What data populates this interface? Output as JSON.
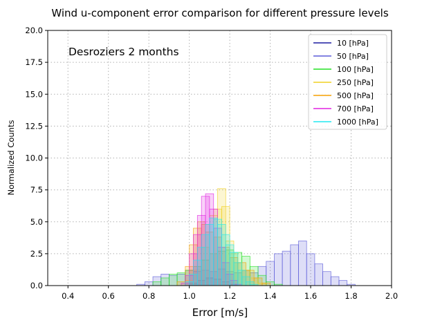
{
  "chart_data": {
    "type": "histogram",
    "title": "Wind u-component error comparison for different pressure levels",
    "xlabel": "Error [m/s]",
    "ylabel": "Normalized Counts",
    "annotation": "Desroziers 2 months",
    "xlim": [
      0.3,
      2.0
    ],
    "ylim": [
      0,
      20
    ],
    "xticks": [
      "0.4",
      "0.6",
      "0.8",
      "1.0",
      "1.2",
      "1.4",
      "1.6",
      "1.8",
      "2.0"
    ],
    "yticks": [
      "0.0",
      "2.5",
      "5.0",
      "7.5",
      "10.0",
      "12.5",
      "15.0",
      "17.5",
      "20.0"
    ],
    "grid": true,
    "legend_position": "top-right",
    "series": [
      {
        "name": "10 [hPa]",
        "color": "#1a1aa0",
        "edges": [
          1.1,
          1.22
        ],
        "bins": [
          [
            1.02,
            0.2
          ],
          [
            1.06,
            0.4
          ],
          [
            1.1,
            0.6
          ],
          [
            1.14,
            0.5
          ],
          [
            1.18,
            0.3
          ],
          [
            1.22,
            0.1
          ]
        ]
      },
      {
        "name": "50 [hPa]",
        "color": "#5a5ad8",
        "bins": [
          [
            0.76,
            0.1
          ],
          [
            0.8,
            0.3
          ],
          [
            0.84,
            0.7
          ],
          [
            0.88,
            0.9
          ],
          [
            0.92,
            0.8
          ],
          [
            0.96,
            0.9
          ],
          [
            1.0,
            1.2
          ],
          [
            1.04,
            1.1
          ],
          [
            1.08,
            1.2
          ],
          [
            1.12,
            1.1
          ],
          [
            1.16,
            1.3
          ],
          [
            1.2,
            1.1
          ],
          [
            1.24,
            1.0
          ],
          [
            1.28,
            1.2
          ],
          [
            1.32,
            1.0
          ],
          [
            1.36,
            1.5
          ],
          [
            1.4,
            1.9
          ],
          [
            1.44,
            2.5
          ],
          [
            1.48,
            2.7
          ],
          [
            1.52,
            3.2
          ],
          [
            1.56,
            3.5
          ],
          [
            1.6,
            2.5
          ],
          [
            1.64,
            1.7
          ],
          [
            1.68,
            1.1
          ],
          [
            1.72,
            0.7
          ],
          [
            1.76,
            0.4
          ],
          [
            1.8,
            0.1
          ]
        ]
      },
      {
        "name": "100 [hPa]",
        "color": "#22e022",
        "bins": [
          [
            0.84,
            0.3
          ],
          [
            0.88,
            0.6
          ],
          [
            0.92,
            0.9
          ],
          [
            0.96,
            1.0
          ],
          [
            1.0,
            1.2
          ],
          [
            1.04,
            1.5
          ],
          [
            1.08,
            2.0
          ],
          [
            1.12,
            2.5
          ],
          [
            1.16,
            2.7
          ],
          [
            1.2,
            2.8
          ],
          [
            1.24,
            2.6
          ],
          [
            1.28,
            2.3
          ],
          [
            1.32,
            1.5
          ],
          [
            1.36,
            0.8
          ],
          [
            1.4,
            0.3
          ],
          [
            1.44,
            0.1
          ]
        ]
      },
      {
        "name": "250 [hPa]",
        "color": "#f0d020",
        "bins": [
          [
            1.0,
            0.4
          ],
          [
            1.04,
            1.2
          ],
          [
            1.08,
            3.0
          ],
          [
            1.12,
            5.5
          ],
          [
            1.14,
            6.0
          ],
          [
            1.16,
            7.6
          ],
          [
            1.18,
            6.2
          ],
          [
            1.2,
            3.5
          ],
          [
            1.22,
            2.5
          ],
          [
            1.24,
            1.8
          ],
          [
            1.28,
            1.2
          ],
          [
            1.32,
            0.6
          ],
          [
            1.36,
            0.2
          ]
        ]
      },
      {
        "name": "500 [hPa]",
        "color": "#f5a000",
        "bins": [
          [
            0.96,
            0.3
          ],
          [
            1.0,
            1.5
          ],
          [
            1.02,
            3.2
          ],
          [
            1.04,
            4.5
          ],
          [
            1.06,
            5.0
          ],
          [
            1.08,
            4.8
          ],
          [
            1.1,
            4.2
          ],
          [
            1.14,
            3.8
          ],
          [
            1.18,
            3.0
          ],
          [
            1.22,
            2.2
          ],
          [
            1.26,
            1.8
          ],
          [
            1.3,
            1.2
          ],
          [
            1.34,
            0.6
          ],
          [
            1.38,
            0.2
          ]
        ]
      },
      {
        "name": "700 [hPa]",
        "color": "#e020e0",
        "bins": [
          [
            0.98,
            0.2
          ],
          [
            1.0,
            0.8
          ],
          [
            1.02,
            2.5
          ],
          [
            1.04,
            4.0
          ],
          [
            1.06,
            5.5
          ],
          [
            1.08,
            7.0
          ],
          [
            1.1,
            7.2
          ],
          [
            1.12,
            6.0
          ],
          [
            1.14,
            4.5
          ],
          [
            1.16,
            3.0
          ],
          [
            1.18,
            1.8
          ],
          [
            1.2,
            0.9
          ],
          [
            1.22,
            0.4
          ],
          [
            1.24,
            0.1
          ]
        ]
      },
      {
        "name": "1000 [hPa]",
        "color": "#20e8f0",
        "bins": [
          [
            1.0,
            0.3
          ],
          [
            1.02,
            0.9
          ],
          [
            1.04,
            2.0
          ],
          [
            1.06,
            3.0
          ],
          [
            1.08,
            4.0
          ],
          [
            1.1,
            4.8
          ],
          [
            1.12,
            5.3
          ],
          [
            1.14,
            5.2
          ],
          [
            1.16,
            4.8
          ],
          [
            1.18,
            4.0
          ],
          [
            1.2,
            3.2
          ],
          [
            1.22,
            2.6
          ],
          [
            1.24,
            1.8
          ],
          [
            1.26,
            1.2
          ],
          [
            1.28,
            0.7
          ],
          [
            1.3,
            0.3
          ],
          [
            1.32,
            0.1
          ]
        ]
      }
    ]
  }
}
